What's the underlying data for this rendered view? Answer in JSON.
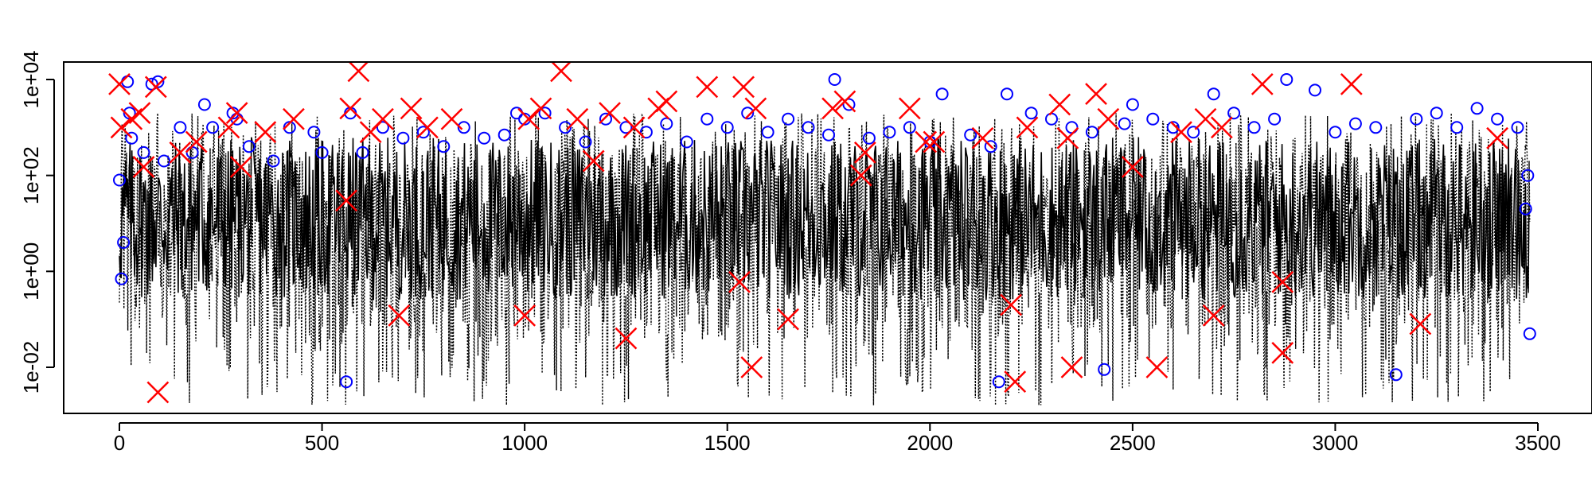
{
  "chart_data": {
    "type": "scatter",
    "title": "",
    "xlabel": "",
    "ylabel": "",
    "xlim": [
      -130,
      3620
    ],
    "ylim_log10": [
      -2.9,
      4.5
    ],
    "y_scale": "log",
    "grid": false,
    "legend": "none",
    "x_ticks": [
      0,
      500,
      1000,
      1500,
      2000,
      2500,
      3000,
      3500
    ],
    "x_tick_labels": [
      "0",
      "500",
      "1000",
      "1500",
      "2000",
      "2500",
      "3000",
      "3500"
    ],
    "y_ticks": [
      0.01,
      1,
      100,
      10000
    ],
    "y_tick_labels": [
      "1e-02",
      "1e+00",
      "1e+02",
      "1e+04"
    ],
    "series": [
      {
        "style": "dotted-line",
        "color": "#000000",
        "description_visible": false,
        "x_range": [
          0,
          3480
        ],
        "typical_range": [
          0.01,
          1000
        ]
      },
      {
        "style": "open-circle",
        "color": "#0000ff",
        "points": [
          [
            0,
            80
          ],
          [
            5,
            0.7
          ],
          [
            10,
            4
          ],
          [
            20,
            9000
          ],
          [
            25,
            2000
          ],
          [
            30,
            600
          ],
          [
            60,
            300
          ],
          [
            80,
            8000
          ],
          [
            95,
            9000
          ],
          [
            110,
            200
          ],
          [
            150,
            1000
          ],
          [
            180,
            300
          ],
          [
            210,
            3000
          ],
          [
            230,
            1000
          ],
          [
            280,
            2000
          ],
          [
            290,
            1500
          ],
          [
            320,
            400
          ],
          [
            380,
            200
          ],
          [
            420,
            1000
          ],
          [
            480,
            800
          ],
          [
            500,
            300
          ],
          [
            560,
            0.005
          ],
          [
            570,
            2000
          ],
          [
            600,
            300
          ],
          [
            650,
            1000
          ],
          [
            700,
            600
          ],
          [
            750,
            800
          ],
          [
            800,
            400
          ],
          [
            850,
            1000
          ],
          [
            900,
            600
          ],
          [
            950,
            700
          ],
          [
            980,
            2000
          ],
          [
            1000,
            1500
          ],
          [
            1050,
            2000
          ],
          [
            1100,
            1000
          ],
          [
            1150,
            500
          ],
          [
            1200,
            1500
          ],
          [
            1250,
            1000
          ],
          [
            1300,
            800
          ],
          [
            1350,
            1200
          ],
          [
            1400,
            500
          ],
          [
            1450,
            1500
          ],
          [
            1500,
            1000
          ],
          [
            1550,
            2000
          ],
          [
            1600,
            800
          ],
          [
            1650,
            1500
          ],
          [
            1700,
            1000
          ],
          [
            1750,
            700
          ],
          [
            1765,
            10000
          ],
          [
            1800,
            3000
          ],
          [
            1850,
            600
          ],
          [
            1900,
            800
          ],
          [
            1950,
            1000
          ],
          [
            2000,
            500
          ],
          [
            2030,
            5000
          ],
          [
            2100,
            700
          ],
          [
            2150,
            400
          ],
          [
            2170,
            0.005
          ],
          [
            2190,
            5000
          ],
          [
            2250,
            2000
          ],
          [
            2300,
            1500
          ],
          [
            2350,
            1000
          ],
          [
            2400,
            800
          ],
          [
            2430,
            0.009
          ],
          [
            2480,
            1200
          ],
          [
            2500,
            3000
          ],
          [
            2550,
            1500
          ],
          [
            2600,
            1000
          ],
          [
            2650,
            800
          ],
          [
            2700,
            5000
          ],
          [
            2750,
            2000
          ],
          [
            2800,
            1000
          ],
          [
            2850,
            1500
          ],
          [
            2880,
            10000
          ],
          [
            2950,
            6000
          ],
          [
            3000,
            800
          ],
          [
            3050,
            1200
          ],
          [
            3100,
            1000
          ],
          [
            3150,
            0.007
          ],
          [
            3200,
            1500
          ],
          [
            3250,
            2000
          ],
          [
            3300,
            1000
          ],
          [
            3350,
            2500
          ],
          [
            3400,
            1500
          ],
          [
            3450,
            1000
          ],
          [
            3470,
            20
          ],
          [
            3480,
            0.05
          ],
          [
            3475,
            100
          ]
        ]
      },
      {
        "style": "cross",
        "color": "#ff0000",
        "points": [
          [
            0,
            8000
          ],
          [
            5,
            1000
          ],
          [
            30,
            1500
          ],
          [
            50,
            2000
          ],
          [
            60,
            150
          ],
          [
            90,
            7000
          ],
          [
            95,
            0.003
          ],
          [
            150,
            300
          ],
          [
            190,
            500
          ],
          [
            270,
            1000
          ],
          [
            290,
            2000
          ],
          [
            300,
            150
          ],
          [
            360,
            800
          ],
          [
            430,
            1500
          ],
          [
            560,
            30
          ],
          [
            570,
            2500
          ],
          [
            590,
            15000
          ],
          [
            620,
            800
          ],
          [
            650,
            1500
          ],
          [
            690,
            0.12
          ],
          [
            720,
            2500
          ],
          [
            760,
            1000
          ],
          [
            820,
            1500
          ],
          [
            1000,
            0.12
          ],
          [
            1010,
            1500
          ],
          [
            1040,
            2500
          ],
          [
            1090,
            15000
          ],
          [
            1130,
            1500
          ],
          [
            1170,
            200
          ],
          [
            1210,
            2000
          ],
          [
            1250,
            0.04
          ],
          [
            1270,
            1000
          ],
          [
            1330,
            2500
          ],
          [
            1350,
            3500
          ],
          [
            1450,
            7000
          ],
          [
            1530,
            0.6
          ],
          [
            1540,
            7000
          ],
          [
            1560,
            0.01
          ],
          [
            1570,
            2500
          ],
          [
            1650,
            0.1
          ],
          [
            1760,
            2500
          ],
          [
            1790,
            3500
          ],
          [
            1830,
            100
          ],
          [
            1840,
            300
          ],
          [
            1950,
            2500
          ],
          [
            1990,
            500
          ],
          [
            2010,
            500
          ],
          [
            2130,
            600
          ],
          [
            2200,
            0.2
          ],
          [
            2210,
            0.005
          ],
          [
            2240,
            1000
          ],
          [
            2320,
            3000
          ],
          [
            2340,
            600
          ],
          [
            2350,
            0.01
          ],
          [
            2410,
            5000
          ],
          [
            2440,
            1500
          ],
          [
            2500,
            150
          ],
          [
            2560,
            0.01
          ],
          [
            2620,
            800
          ],
          [
            2680,
            1500
          ],
          [
            2700,
            0.12
          ],
          [
            2720,
            1000
          ],
          [
            2820,
            8000
          ],
          [
            2870,
            0.02
          ],
          [
            2870,
            0.6
          ],
          [
            3040,
            8000
          ],
          [
            3210,
            0.08
          ],
          [
            3400,
            600
          ]
        ]
      }
    ]
  }
}
